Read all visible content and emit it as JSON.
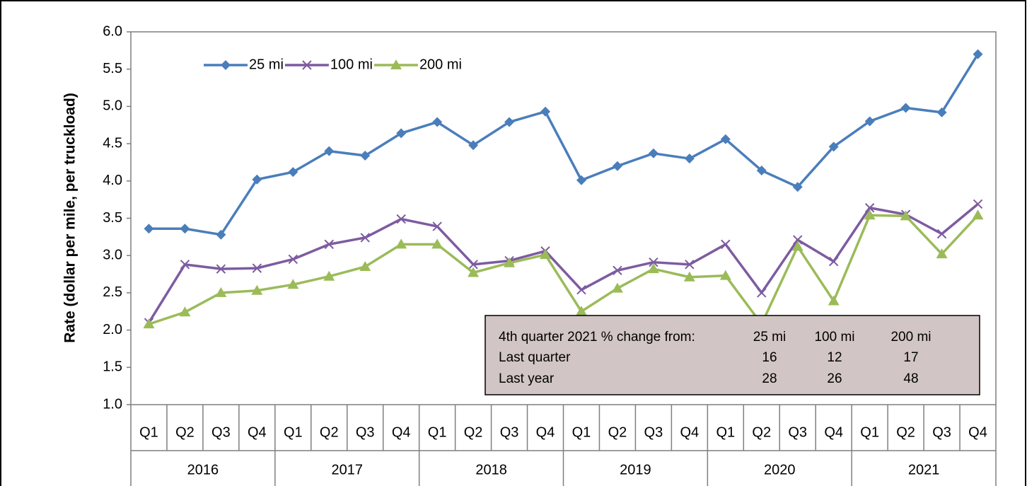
{
  "chart_data": {
    "type": "line",
    "y_label": "Rate (dollar per mile, per truckload)",
    "categories": [
      "Q1",
      "Q2",
      "Q3",
      "Q4",
      "Q1",
      "Q2",
      "Q3",
      "Q4",
      "Q1",
      "Q2",
      "Q3",
      "Q4",
      "Q1",
      "Q2",
      "Q3",
      "Q4",
      "Q1",
      "Q2",
      "Q3",
      "Q4",
      "Q1",
      "Q2",
      "Q3",
      "Q4"
    ],
    "category_groups": [
      "2016",
      "2017",
      "2018",
      "2019",
      "2020",
      "2021"
    ],
    "ylim": [
      1.0,
      6.0
    ],
    "yticks": [
      {
        "value": 1.0,
        "label": "1.0"
      },
      {
        "value": 1.5,
        "label": "1.5"
      },
      {
        "value": 2.0,
        "label": "2.0"
      },
      {
        "value": 2.5,
        "label": "2.5"
      },
      {
        "value": 3.0,
        "label": "3.0"
      },
      {
        "value": 3.5,
        "label": "3.5"
      },
      {
        "value": 4.0,
        "label": "4.0"
      },
      {
        "value": 4.5,
        "label": "4.5"
      },
      {
        "value": 5.0,
        "label": "5.0"
      },
      {
        "value": 5.5,
        "label": "5.5"
      },
      {
        "value": 6.0,
        "label": "6.0"
      }
    ],
    "grid": false,
    "legend": "top-left",
    "series": [
      {
        "name": "25 mi",
        "color": "#4a7ebb",
        "marker": "diamond",
        "values": [
          3.36,
          3.36,
          3.28,
          4.02,
          4.12,
          4.4,
          4.34,
          4.64,
          4.79,
          4.48,
          4.79,
          4.93,
          4.01,
          4.2,
          4.37,
          4.3,
          4.56,
          4.14,
          3.92,
          4.46,
          4.8,
          4.98,
          4.92,
          5.7
        ]
      },
      {
        "name": "100 mi",
        "color": "#7d5ba0",
        "marker": "cross",
        "values": [
          2.1,
          2.88,
          2.82,
          2.83,
          2.95,
          3.15,
          3.24,
          3.49,
          3.39,
          2.88,
          2.93,
          3.06,
          2.54,
          2.8,
          2.91,
          2.88,
          3.15,
          2.5,
          3.21,
          2.92,
          3.64,
          3.55,
          3.29,
          3.69
        ]
      },
      {
        "name": "200 mi",
        "color": "#9bbb59",
        "marker": "triangle",
        "values": [
          2.08,
          2.24,
          2.5,
          2.53,
          2.61,
          2.72,
          2.85,
          3.15,
          3.15,
          2.77,
          2.9,
          3.01,
          2.25,
          2.56,
          2.82,
          2.71,
          2.73,
          2.08,
          3.12,
          2.39,
          3.54,
          3.53,
          3.02,
          3.54
        ]
      }
    ],
    "annotation_table": {
      "rows": [
        [
          "4th  quarter 2021  % change from:",
          "25 mi",
          "100 mi",
          "200 mi"
        ],
        [
          "Last quarter",
          "16",
          "12",
          "17"
        ],
        [
          "Last year",
          "28",
          "26",
          "48"
        ]
      ]
    }
  }
}
